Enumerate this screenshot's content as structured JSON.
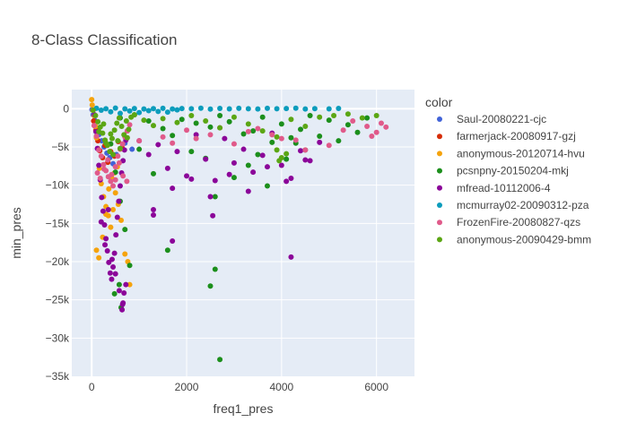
{
  "chart_data": {
    "type": "scatter",
    "title": "8-Class Classification",
    "xlabel": "freq1_pres",
    "ylabel": "min_pres",
    "xlim": [
      -420,
      6800
    ],
    "ylim": [
      -35000,
      2500
    ],
    "x_ticks": [
      0,
      2000,
      4000,
      6000
    ],
    "x_tick_labels": [
      "0",
      "2000",
      "4000",
      "6000"
    ],
    "y_ticks": [
      0,
      -5000,
      -10000,
      -15000,
      -20000,
      -25000,
      -30000,
      -35000
    ],
    "y_tick_labels": [
      "0",
      "−5k",
      "−10k",
      "−15k",
      "−20k",
      "−25k",
      "−30k",
      "−35k"
    ],
    "grid": true,
    "legend_title": "color",
    "legend_position": "right",
    "series": [
      {
        "name": "Saul-20080221-cjc",
        "color": "#4163d8",
        "x": [
          5,
          30,
          60,
          110,
          150,
          210,
          260,
          320,
          380,
          450,
          520,
          600,
          700,
          850
        ],
        "y": [
          -120,
          -800,
          -1500,
          -2600,
          -3400,
          -4200,
          -5000,
          -5800,
          -6400,
          -7200,
          -6000,
          -5200,
          -4500,
          -5300
        ]
      },
      {
        "name": "farmerjack-20080917-gzj",
        "color": "#d62c06",
        "x": [
          40,
          90,
          130,
          170,
          230,
          280,
          340,
          400,
          480,
          560,
          640
        ],
        "y": [
          -1600,
          -2800,
          -4200,
          -5500,
          -6400,
          -4800,
          -7000,
          -5600,
          -6200,
          -4300,
          -5100
        ]
      },
      {
        "name": "anonymous-20120714-hvu",
        "color": "#f5a30c",
        "x": [
          0,
          10,
          25,
          50,
          80,
          100,
          130,
          160,
          200,
          250,
          300,
          350,
          400,
          450,
          500,
          560,
          620,
          700,
          760,
          800,
          100,
          150,
          230,
          300,
          360,
          420,
          480,
          540
        ],
        "y": [
          1200,
          500,
          -200,
          -900,
          -2300,
          -3800,
          -5200,
          -7800,
          -9800,
          -11500,
          -12800,
          -14000,
          -15500,
          -13200,
          -11000,
          -12500,
          -14600,
          -19000,
          -20000,
          -23000,
          -18500,
          -19500,
          -16800,
          -13800,
          -10500,
          -9000,
          -8400,
          -7600
        ]
      },
      {
        "name": "pcsnpny-20150204-mkj",
        "color": "#1c8f1c",
        "x": [
          600,
          900,
          1200,
          1500,
          1900,
          2200,
          2500,
          2700,
          2900,
          3200,
          3400,
          3600,
          3800,
          4000,
          4200,
          4400,
          4600,
          4800,
          5000,
          5200,
          5400,
          5600,
          5800,
          400,
          500,
          600,
          700,
          800,
          1000,
          1300,
          1700,
          2100,
          2400,
          2600,
          3000,
          3300,
          3700,
          4100,
          4500,
          480,
          580,
          620,
          2500,
          2600,
          2700,
          1600,
          3500,
          4300
        ],
        "y": [
          -1200,
          -800,
          -1600,
          -2600,
          -1400,
          -1900,
          -2400,
          -900,
          -1700,
          -3300,
          -2900,
          -1100,
          -4400,
          -2000,
          -3800,
          -2700,
          -900,
          -3600,
          -1500,
          -4200,
          -2100,
          -3100,
          -1200,
          -4600,
          -8300,
          -12100,
          -15800,
          -20500,
          -5300,
          -8500,
          -3500,
          -5600,
          -6500,
          -11500,
          -9000,
          -7400,
          -10100,
          -6600,
          -5400,
          -24200,
          -23000,
          -26000,
          -23200,
          -21000,
          -32800,
          -18500,
          -6000,
          -4500
        ]
      },
      {
        "name": "mfread-10112006-4",
        "color": "#8b0599",
        "x": [
          60,
          90,
          120,
          150,
          180,
          210,
          240,
          270,
          300,
          330,
          360,
          390,
          420,
          450,
          480,
          510,
          540,
          570,
          600,
          630,
          660,
          690,
          720,
          750,
          200,
          280,
          350,
          430,
          500,
          580,
          650,
          720,
          1000,
          1200,
          1400,
          1600,
          1800,
          2000,
          2200,
          2400,
          2600,
          2800,
          3000,
          3200,
          3400,
          3600,
          3800,
          4000,
          4200,
          4400,
          4600,
          4800,
          1300,
          1700,
          2100,
          2500,
          2900,
          3300,
          3700,
          4100,
          4500,
          2550,
          4200,
          1700,
          1300,
          640,
          660,
          680
        ],
        "y": [
          -800,
          -3000,
          -5200,
          -7400,
          -9300,
          -11600,
          -13400,
          -15200,
          -17000,
          -18600,
          -20100,
          -21500,
          -22300,
          -20700,
          -18900,
          -16500,
          -14200,
          -12100,
          -10100,
          -8400,
          -6800,
          -5400,
          -4100,
          -2900,
          -14800,
          -17800,
          -13200,
          -19700,
          -21600,
          -23800,
          -25600,
          -23000,
          -4200,
          -6000,
          -4700,
          -7800,
          -5600,
          -8800,
          -3400,
          -6600,
          -9400,
          -3900,
          -7100,
          -5300,
          -8300,
          -6100,
          -3200,
          -7400,
          -9100,
          -5500,
          -6800,
          -4400,
          -13200,
          -10400,
          -9200,
          -11500,
          -8600,
          -10800,
          -7600,
          -9500,
          -6700,
          -14000,
          -19400,
          -17300,
          -13900,
          -26300,
          -25400,
          -24100
        ]
      },
      {
        "name": "mcmurray02-20090312-pza",
        "color": "#0c9cbc",
        "x": [
          100,
          300,
          500,
          700,
          900,
          1100,
          1300,
          1500,
          1700,
          1900,
          2100,
          2300,
          2500,
          2700,
          2900,
          3100,
          3300,
          3500,
          3700,
          3900,
          4100,
          4300,
          4500,
          4700,
          5000,
          5200,
          200,
          400,
          600,
          800,
          1000,
          1200,
          1400,
          1600,
          1800
        ],
        "y": [
          50,
          -10,
          80,
          -20,
          30,
          -40,
          10,
          60,
          -30,
          20,
          -10,
          70,
          -50,
          40,
          -20,
          60,
          0,
          -30,
          50,
          -10,
          30,
          70,
          -40,
          10,
          -20,
          40,
          -200,
          -400,
          -600,
          -300,
          -500,
          -250,
          -350,
          -450,
          -150
        ]
      },
      {
        "name": "FrozenFire-20080827-qzs",
        "color": "#e05a8a",
        "x": [
          50,
          100,
          150,
          200,
          250,
          300,
          350,
          400,
          450,
          500,
          550,
          600,
          650,
          700,
          750,
          800,
          120,
          180,
          260,
          340,
          420,
          500,
          580,
          660,
          740,
          1000,
          1500,
          2000,
          2500,
          3000,
          3500,
          4000,
          4500,
          5000,
          5500,
          5800,
          6000,
          6100,
          6200,
          5900,
          3800,
          4300,
          5300,
          1700,
          2200,
          2700,
          3300
        ],
        "y": [
          -2200,
          -3600,
          -5400,
          -6200,
          -7300,
          -8100,
          -8900,
          -9500,
          -10100,
          -7600,
          -6200,
          -5300,
          -4600,
          -3700,
          -2900,
          -2100,
          -8400,
          -9100,
          -7900,
          -6700,
          -8600,
          -9300,
          -7100,
          -8800,
          -9500,
          -4200,
          -3700,
          -2800,
          -3400,
          -4600,
          -2600,
          -3900,
          -5400,
          -4800,
          -1600,
          -2300,
          -3100,
          -1900,
          -2400,
          -3600,
          -3400,
          -4100,
          -2800,
          -4500,
          -3900,
          -2500,
          -3000
        ]
      },
      {
        "name": "anonymous-20090429-bmm",
        "color": "#5ba614",
        "x": [
          30,
          80,
          130,
          180,
          230,
          280,
          330,
          380,
          430,
          480,
          530,
          580,
          630,
          680,
          730,
          780,
          830,
          900,
          1100,
          1300,
          1500,
          1800,
          2100,
          2400,
          2700,
          3000,
          3300,
          3600,
          3900,
          4200,
          4500,
          4800,
          5100,
          5400,
          5700,
          6000,
          150,
          300,
          450,
          600,
          750,
          250,
          400,
          550,
          3900,
          4000,
          4100,
          3950
        ],
        "y": [
          -200,
          -900,
          -1700,
          -2400,
          -3200,
          -4100,
          -4800,
          -5600,
          -3900,
          -2800,
          -1900,
          -1200,
          -2300,
          -3400,
          -1600,
          -2700,
          -1100,
          -800,
          -1500,
          -2200,
          -1300,
          -1800,
          -900,
          -1600,
          -2500,
          -1100,
          -2000,
          -2900,
          -3700,
          -1400,
          -2300,
          -1100,
          -900,
          -700,
          -1200,
          -900,
          -3000,
          -4500,
          -6000,
          -5200,
          -3800,
          -2000,
          -3300,
          -4200,
          -5400,
          -6400,
          -5900,
          -6800
        ]
      }
    ]
  }
}
